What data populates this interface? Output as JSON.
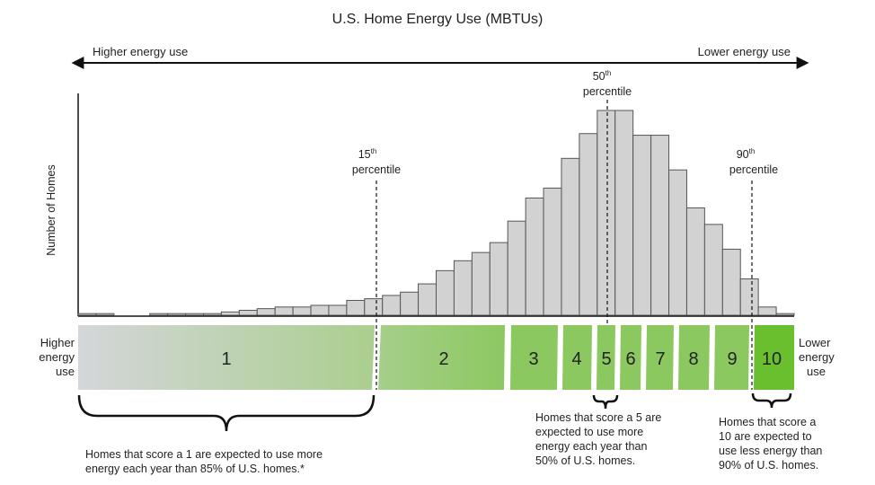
{
  "chart_data": {
    "type": "bar",
    "title": "U.S. Home Energy Use (MBTUs)",
    "ylabel": "Number of Homes",
    "xlabel": "",
    "direction": {
      "left": "Higher energy use",
      "right": "Lower energy use"
    },
    "histogram": {
      "bins": 40,
      "values": [
        1,
        1,
        0,
        0,
        1,
        1,
        1,
        1,
        2,
        3,
        4,
        5,
        5,
        6,
        6,
        9,
        10,
        12,
        14,
        19,
        27,
        33,
        38,
        44,
        57,
        71,
        77,
        95,
        110,
        124,
        124,
        109,
        109,
        88,
        65,
        55,
        40,
        22,
        5,
        1
      ]
    },
    "percentiles": [
      {
        "sup": "15",
        "base": "th",
        "label": "percentile",
        "value": 15
      },
      {
        "sup": "50",
        "base": "th",
        "label": "percentile",
        "value": 50
      },
      {
        "sup": "90",
        "base": "th",
        "label": "percentile",
        "value": 90
      }
    ],
    "scale": {
      "left_label": [
        "Higher",
        "energy",
        "use"
      ],
      "right_label": [
        "Lower",
        "energy",
        "use"
      ],
      "scores": [
        "1",
        "2",
        "3",
        "4",
        "5",
        "6",
        "7",
        "8",
        "9",
        "10"
      ]
    },
    "notes": {
      "score1": [
        "Homes that score a 1 are expected to use more",
        "energy each year than 85% of U.S. homes.*"
      ],
      "score5": [
        "Homes that score a 5 are",
        "expected to use more",
        "energy each year than",
        "50% of U.S. homes."
      ],
      "score10": [
        "Homes that score a",
        "10 are expected to",
        "use less energy than",
        "90% of U.S. homes."
      ]
    },
    "colors": {
      "bar_fill": "#d2d2d2",
      "bar_stroke": "#555555",
      "score_green": "#8cc860",
      "score_bright": "#6abf2e",
      "score_gray": "#d4d6da"
    }
  }
}
